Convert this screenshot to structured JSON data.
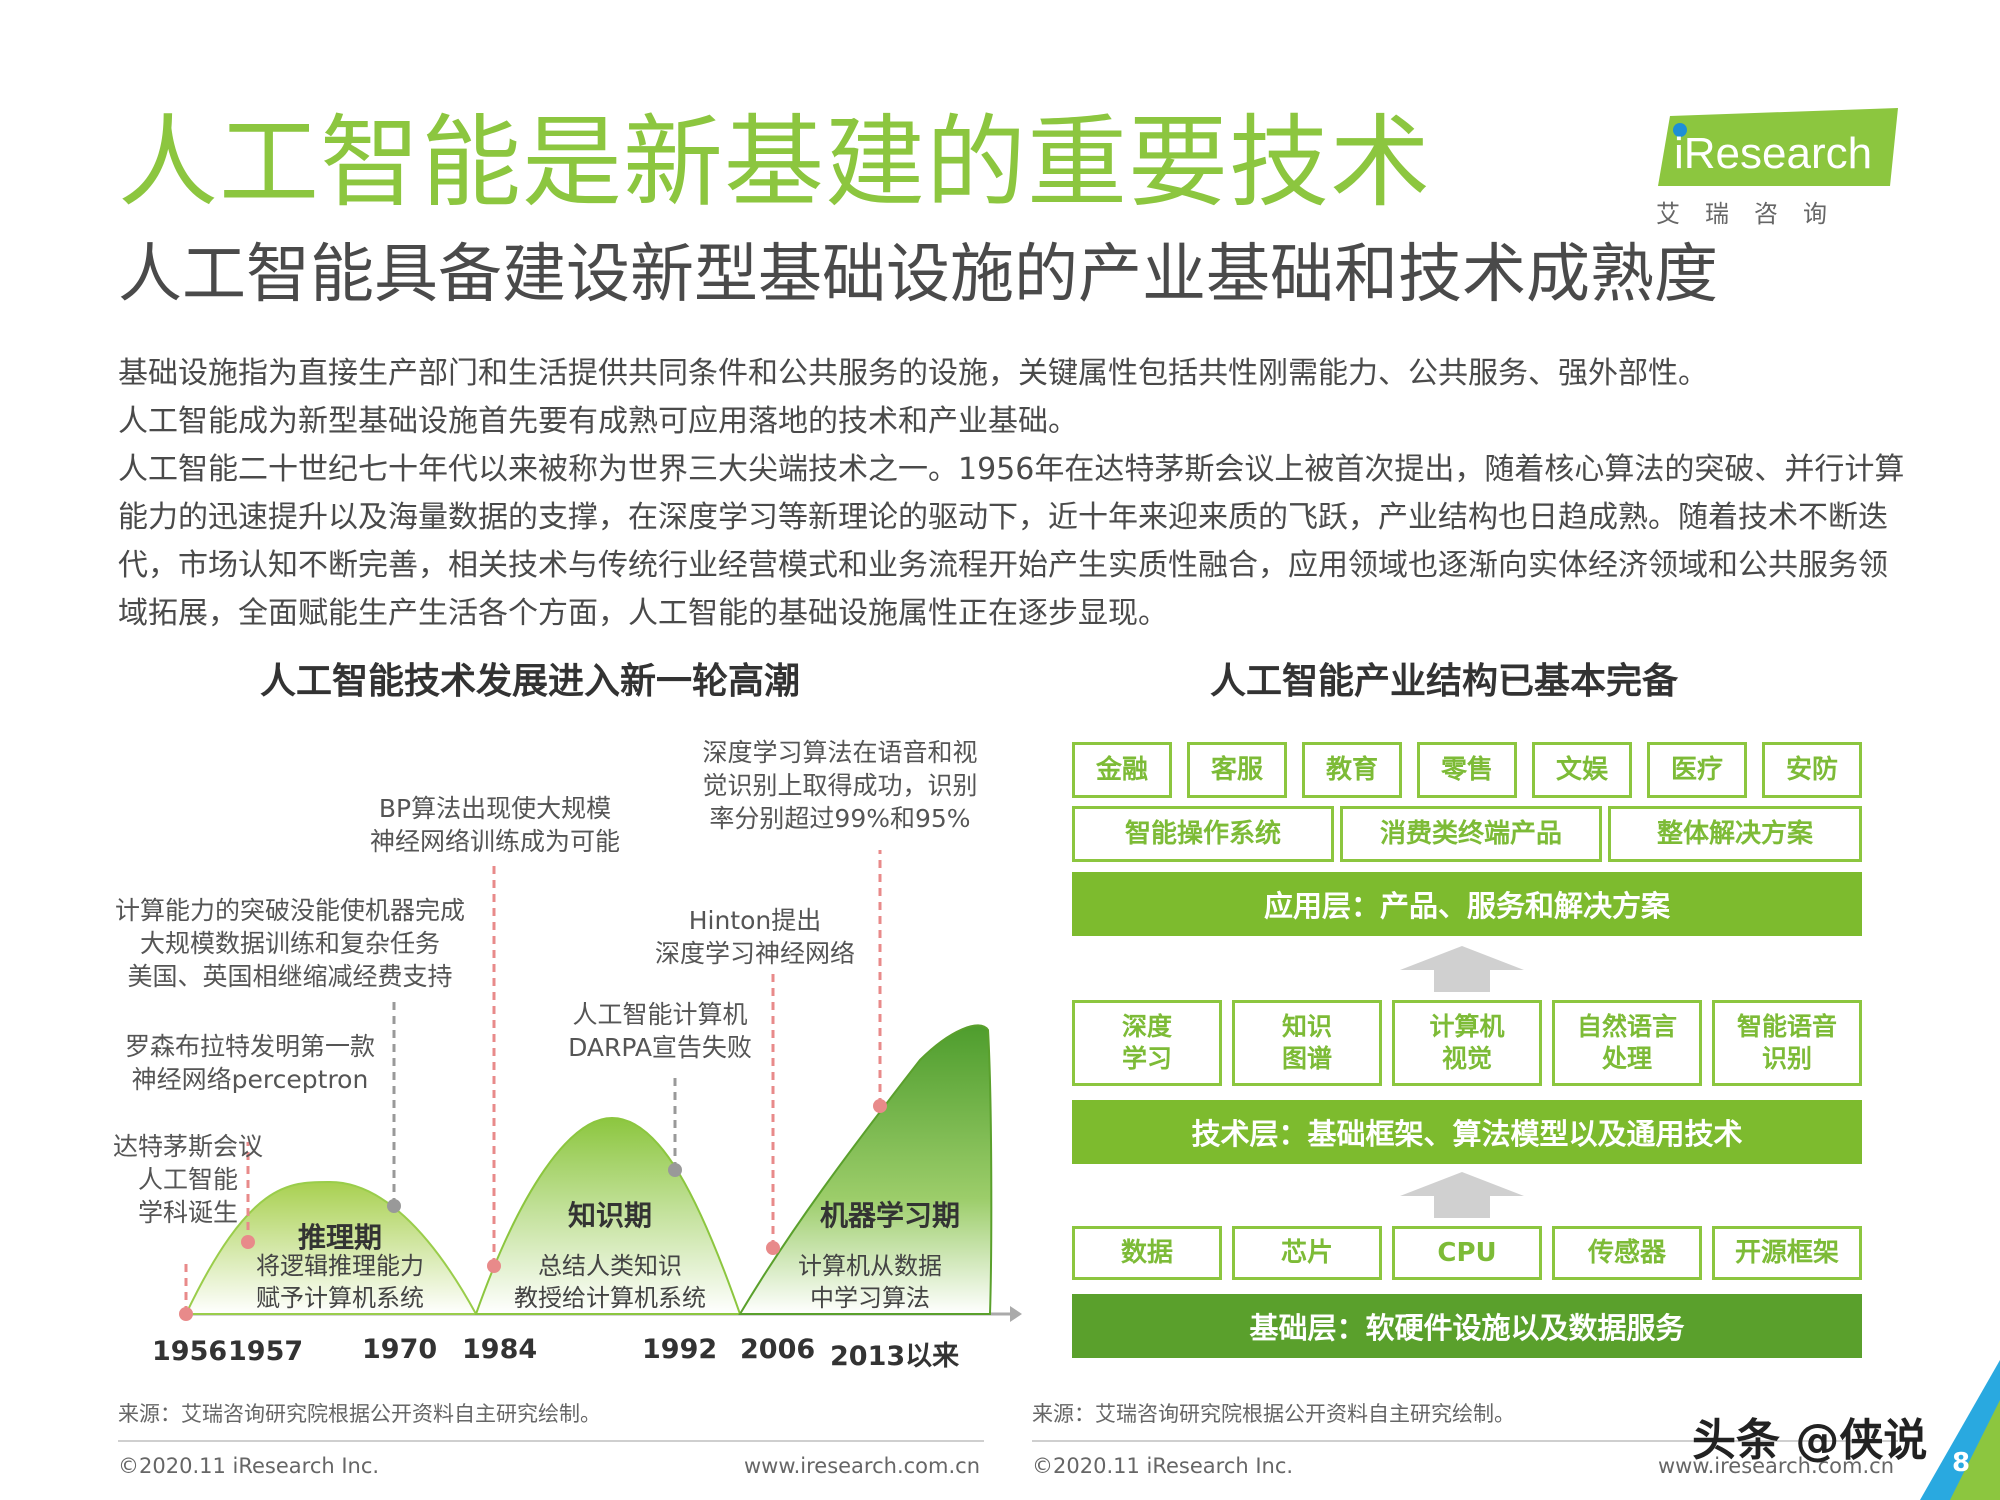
{
  "header": {
    "title": "人工智能是新基建的重要技术",
    "subtitle": "人工智能具备建设新型基础设施的产业基础和技术成熟度",
    "logo_text": "iResearch",
    "logo_sub": "艾瑞咨询"
  },
  "body": {
    "p1": "基础设施指为直接生产部门和生活提供共同条件和公共服务的设施，关键属性包括共性刚需能力、公共服务、强外部性。",
    "p2": "人工智能成为新型基础设施首先要有成熟可应用落地的技术和产业基础。",
    "p3": "人工智能二十世纪七十年代以来被称为世界三大尖端技术之一。1956年在达特茅斯会议上被首次提出，随着核心算法的突破、并行计算能力的迅速提升以及海量数据的支撑，在深度学习等新理论的驱动下，近十年来迎来质的飞跃，产业结构也日趋成熟。随着技术不断迭代，市场认知不断完善，相关技术与传统行业经营模式和业务流程开始产生实质性融合，应用领域也逐渐向实体经济领域和公共服务领域拓展，全面赋能生产生活各个方面，人工智能的基础设施属性正在逐步显现。"
  },
  "left_chart": {
    "title": "人工智能技术发展进入新一轮高潮",
    "events": [
      {
        "lines": [
          "达特茅斯会议",
          "人工智能",
          "学科诞生"
        ]
      },
      {
        "lines": [
          "罗森布拉特发明第一款",
          "神经网络perceptron"
        ]
      },
      {
        "lines": [
          "计算能力的突破没能使机器完成",
          "大规模数据训练和复杂任务",
          "美国、英国相继缩减经费支持"
        ]
      },
      {
        "lines": [
          "BP算法出现使大规模",
          "神经网络训练成为可能"
        ]
      },
      {
        "lines": [
          "人工智能计算机",
          "DARPA宣告失败"
        ]
      },
      {
        "lines": [
          "Hinton提出",
          "深度学习神经网络"
        ]
      },
      {
        "lines": [
          "深度学习算法在语音和视",
          "觉识别上取得成功，识别",
          "率分别超过99%和95%"
        ]
      }
    ],
    "periods": [
      {
        "name": "推理期",
        "desc": [
          "将逻辑推理能力",
          "赋予计算机系统"
        ]
      },
      {
        "name": "知识期",
        "desc": [
          "总结人类知识",
          "教授给计算机系统"
        ]
      },
      {
        "name": "机器学习期",
        "desc": [
          "计算机从数据",
          "中学习算法"
        ]
      }
    ],
    "years": [
      "1956",
      "1957",
      "1970",
      "1984",
      "1992",
      "2006",
      "2013以来"
    ],
    "source": "来源：艾瑞咨询研究院根据公开资料自主研究绘制。",
    "copyright": "©2020.11 iResearch Inc.",
    "website": "www.iresearch.com.cn"
  },
  "right_diagram": {
    "title": "人工智能产业结构已基本完备",
    "app_row1": [
      "金融",
      "客服",
      "教育",
      "零售",
      "文娱",
      "医疗",
      "安防"
    ],
    "app_row2": [
      "智能操作系统",
      "消费类终端产品",
      "整体解决方案"
    ],
    "app_bar": "应用层：产品、服务和解决方案",
    "tech_boxes": [
      [
        "深度",
        "学习"
      ],
      [
        "知识",
        "图谱"
      ],
      [
        "计算机",
        "视觉"
      ],
      [
        "自然语言",
        "处理"
      ],
      [
        "智能语音",
        "识别"
      ]
    ],
    "tech_bar": "技术层：基础框架、算法模型以及通用技术",
    "base_boxes": [
      "数据",
      "芯片",
      "CPU",
      "传感器",
      "开源框架"
    ],
    "base_bar": "基础层：软硬件设施以及数据服务",
    "source": "来源：艾瑞咨询研究院根据公开资料自主研究绘制。",
    "copyright": "©2020.11 iResearch Inc.",
    "website": "www.iresearch.com.cn"
  },
  "watermark": "头条 @侠说",
  "page_number": "8",
  "colors": {
    "brand_green": "#8cc63f",
    "bar_green": "#77b82a",
    "dark_green": "#5aa02c"
  }
}
